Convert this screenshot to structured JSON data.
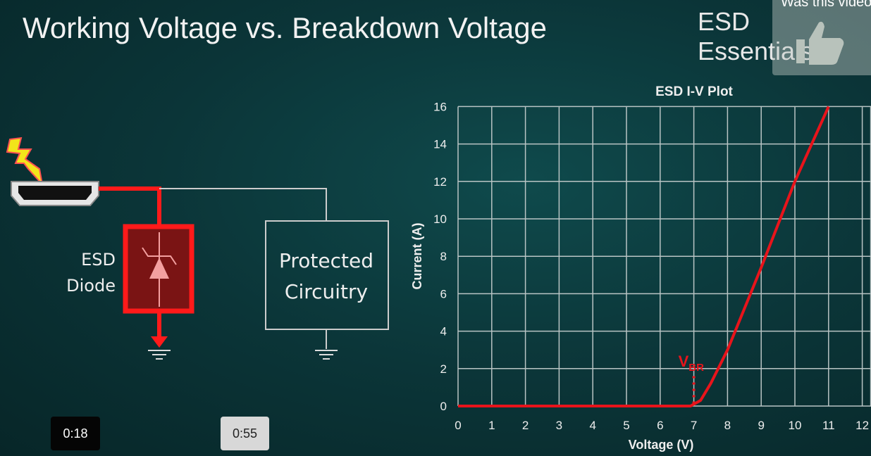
{
  "slide": {
    "title": "Working Voltage vs. Breakdown Voltage",
    "brand": "ESD Essentials",
    "diagram": {
      "diode_label_line1": "ESD",
      "diode_label_line2": "Diode",
      "circuit_label_line1": "Protected",
      "circuit_label_line2": "Circuitry",
      "icons": [
        "lightning-icon",
        "hdmi-connector-icon",
        "tvs-diode-icon",
        "ground-icon"
      ]
    }
  },
  "overlay": {
    "feedback_text": "Was this video",
    "icon": "thumbs-up-icon"
  },
  "player": {
    "current_time": "0:18",
    "hover_time": "0:55"
  },
  "colors": {
    "curve": "#e8141b",
    "grid": "#b9c4c4",
    "background": "#0b3538"
  },
  "chart_data": {
    "type": "line",
    "title": "ESD I-V Plot",
    "xlabel": "Voltage (V)",
    "ylabel": "Current (A)",
    "xlim": [
      0,
      12
    ],
    "ylim": [
      0,
      16
    ],
    "xticks": [
      "0",
      "1",
      "2",
      "3",
      "4",
      "5",
      "6",
      "7",
      "8",
      "9",
      "10",
      "11",
      "12"
    ],
    "yticks": [
      "0",
      "2",
      "4",
      "6",
      "8",
      "10",
      "12",
      "14",
      "16"
    ],
    "grid": true,
    "annotation": {
      "text": "V",
      "subscript": "BR",
      "x": 7
    },
    "series": [
      {
        "x": [
          0,
          6.9,
          7.2,
          7.5,
          8,
          9,
          10,
          11
        ],
        "y": [
          0,
          0,
          0.3,
          1.2,
          3,
          7.4,
          12,
          16
        ]
      }
    ]
  }
}
